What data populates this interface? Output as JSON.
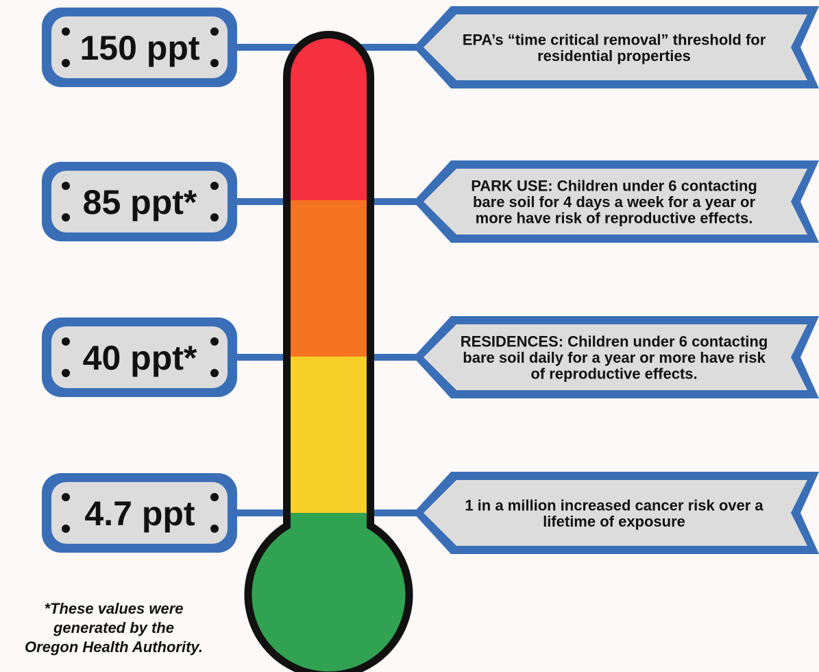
{
  "colors": {
    "frame_blue": "#3a6fb7",
    "box_fill": "#dcdcdc",
    "outline": "#111111",
    "background": "#fdf9f8",
    "segments": [
      "#f5303f",
      "#f47421",
      "#f6cf28",
      "#31a152"
    ]
  },
  "thresholds": [
    {
      "value": "150 ppt",
      "description": [
        "EPA’s “time critical removal” threshold for",
        "residential properties"
      ]
    },
    {
      "value": "85 ppt*",
      "description": [
        "PARK USE: Children under 6 contacting",
        "bare soil for 4 days a week for a year or",
        "more have risk of reproductive effects."
      ]
    },
    {
      "value": "40 ppt*",
      "description": [
        "RESIDENCES: Children under 6 contacting",
        "bare soil daily for a year or more have risk",
        "of reproductive effects."
      ]
    },
    {
      "value": "4.7 ppt",
      "description": [
        "1 in a million increased cancer risk over a",
        "lifetime of exposure"
      ]
    }
  ],
  "footnote": [
    "*These values were",
    "generated by the",
    "Oregon Health Authority."
  ]
}
